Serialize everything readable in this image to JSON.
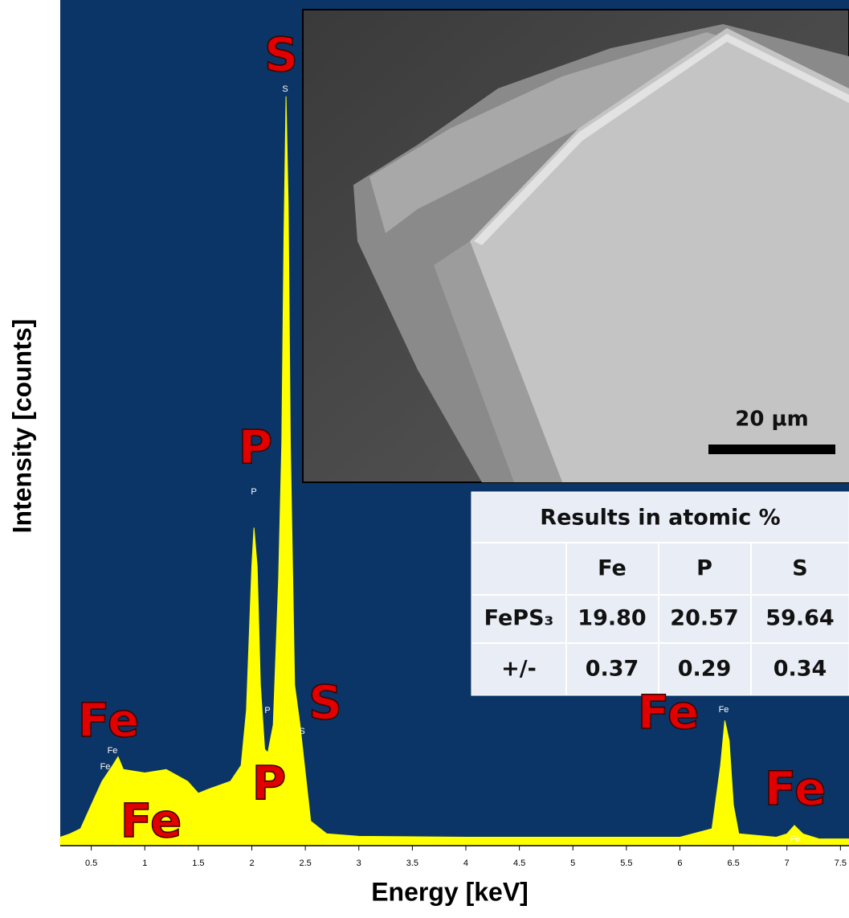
{
  "chart_data": {
    "type": "area",
    "x_label": "Energy [keV]",
    "y_label": "Intensity [counts]",
    "x": [
      0.21,
      0.3,
      0.4,
      0.5,
      0.6,
      0.7,
      0.75,
      0.8,
      1.0,
      1.2,
      1.4,
      1.5,
      1.6,
      1.8,
      1.9,
      1.95,
      2.0,
      2.02,
      2.05,
      2.08,
      2.12,
      2.15,
      2.2,
      2.25,
      2.28,
      2.3,
      2.32,
      2.34,
      2.36,
      2.4,
      2.45,
      2.5,
      2.55,
      2.7,
      3.0,
      4.0,
      5.0,
      6.0,
      6.3,
      6.38,
      6.42,
      6.46,
      6.5,
      6.55,
      6.9,
      7.0,
      7.07,
      7.15,
      7.3,
      7.58
    ],
    "values": [
      1,
      1.4,
      2,
      4.8,
      7.6,
      9.5,
      10.5,
      9,
      8.6,
      9,
      7.6,
      6.2,
      6.7,
      7.6,
      9.5,
      16,
      33,
      37.6,
      33,
      19,
      11.4,
      11,
      14.3,
      31.4,
      47.6,
      72,
      88.6,
      76,
      47.6,
      19,
      14.3,
      8.6,
      2.9,
      1.4,
      1.1,
      1,
      1,
      1,
      2,
      9.5,
      14.8,
      12.4,
      4.8,
      1.4,
      1,
      1.4,
      2.4,
      1.4,
      0.8,
      0.8
    ],
    "color": "#ffff00",
    "background": "#0b3566",
    "xlim": [
      0.21,
      7.58
    ],
    "ylim": [
      0,
      100
    ],
    "xticks": [
      0.5,
      1,
      1.5,
      2,
      2.5,
      3,
      3.5,
      4,
      4.5,
      5,
      5.5,
      6,
      6.5,
      7,
      7.5
    ],
    "annotations": [
      "S",
      "P",
      "Fe",
      "Fe",
      "S",
      "P",
      "Fe",
      "Fe"
    ],
    "peak_labels": [
      "S",
      "P",
      "Fe",
      "Fe",
      "P",
      "S",
      "Fe",
      "Fe"
    ]
  },
  "inset": {
    "scale_bar": "20 µm"
  },
  "table": {
    "title": "Results in atomic %",
    "header": [
      "Fe",
      "P",
      "S"
    ],
    "rows": [
      [
        "FePS₃",
        "19.80",
        "20.57",
        "59.64"
      ],
      [
        "+/-",
        "0.37",
        "0.29",
        "0.34"
      ]
    ]
  }
}
